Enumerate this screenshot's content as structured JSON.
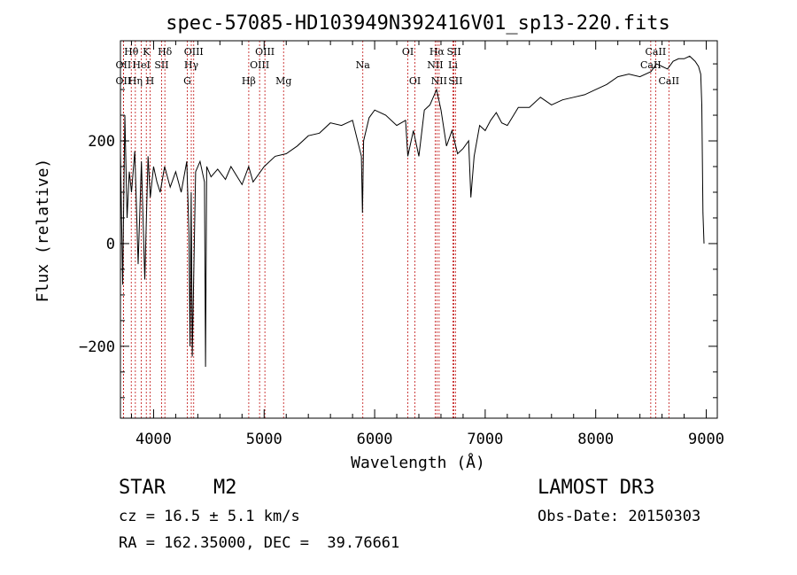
{
  "chart_data": {
    "type": "line",
    "title": "spec-57085-HD103949N392416V01_sp13-220.fits",
    "xlabel": "Wavelength (Å)",
    "ylabel": "Flux (relative)",
    "xlim": [
      3700,
      9100
    ],
    "ylim": [
      -340,
      395
    ],
    "x_ticks": [
      4000,
      5000,
      6000,
      7000,
      8000,
      9000
    ],
    "y_ticks": [
      -200,
      0,
      200
    ],
    "series": [
      {
        "name": "spectrum",
        "x": [
          3700,
          3720,
          3740,
          3760,
          3780,
          3800,
          3830,
          3860,
          3890,
          3920,
          3950,
          3970,
          4000,
          4030,
          4060,
          4100,
          4150,
          4200,
          4250,
          4300,
          4320,
          4330,
          4340,
          4350,
          4380,
          4420,
          4460,
          4470,
          4480,
          4520,
          4580,
          4650,
          4700,
          4800,
          4860,
          4900,
          5000,
          5100,
          5200,
          5300,
          5400,
          5500,
          5600,
          5700,
          5800,
          5880,
          5890,
          5900,
          5950,
          6000,
          6100,
          6200,
          6280,
          6300,
          6350,
          6400,
          6450,
          6500,
          6560,
          6600,
          6650,
          6700,
          6750,
          6800,
          6850,
          6870,
          6900,
          6950,
          7000,
          7050,
          7100,
          7150,
          7200,
          7300,
          7400,
          7500,
          7600,
          7700,
          7800,
          7900,
          8000,
          8100,
          8200,
          8300,
          8400,
          8500,
          8550,
          8600,
          8650,
          8700,
          8750,
          8800,
          8850,
          8900,
          8930,
          8950,
          8960,
          8970,
          8980
        ],
        "y": [
          180,
          -80,
          250,
          50,
          140,
          100,
          180,
          -40,
          160,
          -70,
          170,
          90,
          150,
          120,
          100,
          150,
          110,
          140,
          100,
          160,
          20,
          -200,
          100,
          -220,
          140,
          160,
          120,
          -240,
          150,
          130,
          145,
          125,
          150,
          115,
          150,
          120,
          150,
          170,
          175,
          190,
          210,
          215,
          235,
          230,
          240,
          170,
          60,
          200,
          245,
          260,
          250,
          230,
          240,
          170,
          220,
          170,
          260,
          270,
          300,
          260,
          190,
          220,
          175,
          185,
          200,
          90,
          170,
          230,
          220,
          240,
          255,
          235,
          230,
          265,
          265,
          285,
          270,
          280,
          285,
          290,
          300,
          310,
          325,
          330,
          325,
          335,
          350,
          345,
          340,
          355,
          360,
          360,
          365,
          355,
          345,
          330,
          270,
          60,
          0
        ]
      }
    ],
    "lines": [
      {
        "label": "OII",
        "wl": 3727,
        "row": 2
      },
      {
        "label": "OII",
        "wl": 3727,
        "row": 3
      },
      {
        "label": "Hθ",
        "wl": 3798,
        "row": 1
      },
      {
        "label": "Hη",
        "wl": 3835,
        "row": 3
      },
      {
        "label": "HeI",
        "wl": 3889,
        "row": 2
      },
      {
        "label": "K",
        "wl": 3934,
        "row": 1
      },
      {
        "label": "H",
        "wl": 3968,
        "row": 3
      },
      {
        "label": "SII",
        "wl": 4072,
        "row": 2
      },
      {
        "label": "Hδ",
        "wl": 4102,
        "row": 1
      },
      {
        "label": "G",
        "wl": 4305,
        "row": 3
      },
      {
        "label": "Hγ",
        "wl": 4341,
        "row": 2
      },
      {
        "label": "OIII",
        "wl": 4363,
        "row": 1
      },
      {
        "label": "Hβ",
        "wl": 4861,
        "row": 3
      },
      {
        "label": "OIII",
        "wl": 4959,
        "row": 2
      },
      {
        "label": "OIII",
        "wl": 5007,
        "row": 1
      },
      {
        "label": "Mg",
        "wl": 5176,
        "row": 3
      },
      {
        "label": "Na",
        "wl": 5893,
        "row": 2
      },
      {
        "label": "OI",
        "wl": 6300,
        "row": 1
      },
      {
        "label": "OI",
        "wl": 6364,
        "row": 3
      },
      {
        "label": "NII",
        "wl": 6548,
        "row": 2
      },
      {
        "label": "Hα",
        "wl": 6563,
        "row": 1
      },
      {
        "label": "NII",
        "wl": 6583,
        "row": 3
      },
      {
        "label": "SII",
        "wl": 6717,
        "row": 1
      },
      {
        "label": "Li",
        "wl": 6708,
        "row": 2
      },
      {
        "label": "SII",
        "wl": 6731,
        "row": 3
      },
      {
        "label": "CaII",
        "wl": 8498,
        "row": 2
      },
      {
        "label": "CaII",
        "wl": 8542,
        "row": 1
      },
      {
        "label": "CaII",
        "wl": 8662,
        "row": 3
      }
    ]
  },
  "info": {
    "object_class": "STAR",
    "subclass": "M2",
    "survey": "LAMOST DR3",
    "cz": "cz = 16.5 ± 5.1 km/s",
    "obs_date": "Obs-Date: 20150303",
    "coords": "RA = 162.35000, DEC =  39.76661"
  }
}
